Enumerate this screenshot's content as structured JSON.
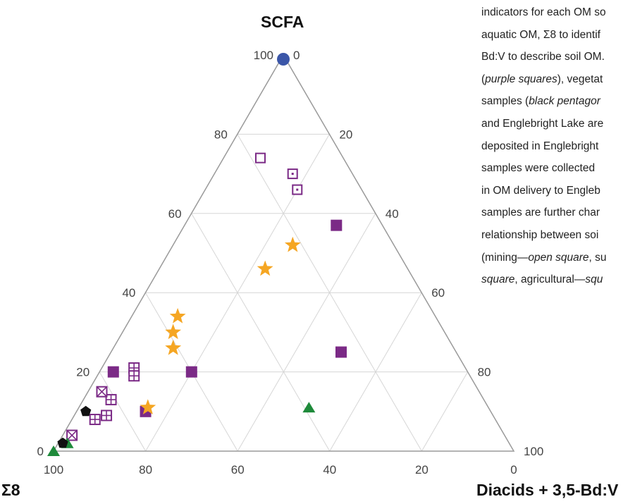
{
  "chart_data": {
    "type": "ternary-scatter",
    "axes": {
      "top": {
        "title": "SCFA",
        "ticks": [
          "0",
          "20",
          "40",
          "60",
          "80",
          "100"
        ]
      },
      "left": {
        "title": "Σ8",
        "ticks": [
          "100",
          "80",
          "60",
          "40",
          "20",
          "0"
        ]
      },
      "right": {
        "title": "Diacids + 3,5-Bd:V",
        "ticks": [
          "100",
          "80",
          "60",
          "40",
          "20",
          "0"
        ]
      }
    },
    "grid": true,
    "series": [
      {
        "marker": "circle-blue",
        "color": "#3b56a8",
        "points": [
          {
            "scfa": 100,
            "sigma8": 0,
            "diacids": 0
          }
        ]
      },
      {
        "marker": "square-filled-purple",
        "color": "#7b2a86",
        "points": [
          {
            "scfa": 57,
            "sigma8": 10,
            "diacids": 33
          },
          {
            "scfa": 25,
            "sigma8": 25,
            "diacids": 50
          },
          {
            "scfa": 20,
            "sigma8": 60,
            "diacids": 20
          },
          {
            "scfa": 20,
            "sigma8": 77,
            "diacids": 3
          },
          {
            "scfa": 10,
            "sigma8": 75,
            "diacids": 15
          }
        ]
      },
      {
        "marker": "square-open-purple",
        "color": "#7b2a86",
        "points": [
          {
            "scfa": 74,
            "sigma8": 18,
            "diacids": 8
          }
        ]
      },
      {
        "marker": "square-dot-purple",
        "color": "#7b2a86",
        "points": [
          {
            "scfa": 70,
            "sigma8": 13,
            "diacids": 17
          },
          {
            "scfa": 66,
            "sigma8": 14,
            "diacids": 20
          }
        ]
      },
      {
        "marker": "square-grid-purple",
        "color": "#7b2a86",
        "points": [
          {
            "scfa": 21,
            "sigma8": 72,
            "diacids": 7
          },
          {
            "scfa": 19,
            "sigma8": 73,
            "diacids": 8
          },
          {
            "scfa": 13,
            "sigma8": 81,
            "diacids": 6
          },
          {
            "scfa": 9,
            "sigma8": 84,
            "diacids": 7
          },
          {
            "scfa": 8,
            "sigma8": 87,
            "diacids": 5
          }
        ]
      },
      {
        "marker": "square-x-purple",
        "color": "#7b2a86",
        "points": [
          {
            "scfa": 15,
            "sigma8": 82,
            "diacids": 3
          },
          {
            "scfa": 4,
            "sigma8": 94,
            "diacids": 2
          }
        ]
      },
      {
        "marker": "star-orange",
        "color": "#f5a623",
        "points": [
          {
            "scfa": 52,
            "sigma8": 22,
            "diacids": 26
          },
          {
            "scfa": 46,
            "sigma8": 31,
            "diacids": 23
          },
          {
            "scfa": 34,
            "sigma8": 56,
            "diacids": 10
          },
          {
            "scfa": 30,
            "sigma8": 59,
            "diacids": 11
          },
          {
            "scfa": 26,
            "sigma8": 61,
            "diacids": 13
          },
          {
            "scfa": 11,
            "sigma8": 74,
            "diacids": 15
          }
        ]
      },
      {
        "marker": "triangle-green",
        "color": "#1e8a3a",
        "points": [
          {
            "scfa": 11,
            "sigma8": 39,
            "diacids": 50
          },
          {
            "scfa": 2,
            "sigma8": 96,
            "diacids": 2
          },
          {
            "scfa": 0,
            "sigma8": 100,
            "diacids": 0
          }
        ]
      },
      {
        "marker": "pentagon-black",
        "color": "#111111",
        "points": [
          {
            "scfa": 10,
            "sigma8": 88,
            "diacids": 2
          },
          {
            "scfa": 2,
            "sigma8": 97,
            "diacids": 1
          }
        ]
      }
    ]
  },
  "caption": {
    "lines": [
      "indicators for each OM so",
      "aquatic OM, Σ8 to identif",
      "Bd:V to describe soil OM.",
      "(purple squares), vegetat",
      "samples (black pentagor",
      "and Englebright Lake are",
      "deposited in Englebright",
      "samples were collected",
      "in OM delivery to Engleb",
      "samples are further char",
      "relationship between soi",
      "(mining—open square, su",
      "square, agricultural—squ"
    ]
  }
}
